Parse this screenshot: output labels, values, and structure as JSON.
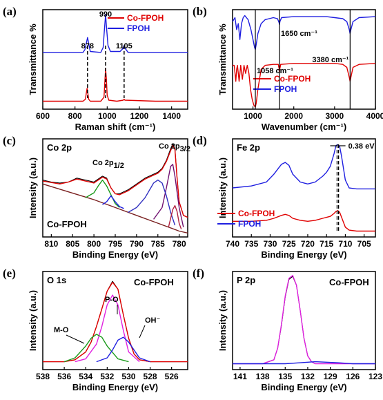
{
  "chart_data": [
    {
      "type": "line",
      "panel_label": "(a)",
      "xlabel": "Raman shift (cm⁻¹)",
      "ylabel": "Transmittance %",
      "xlim": [
        600,
        1500
      ],
      "x_ticks": [
        "600",
        "800",
        "1000",
        "1200",
        "1400"
      ],
      "legend": [
        {
          "name": "Co-FPOH",
          "color": "#e00000"
        },
        {
          "name": "FPOH",
          "color": "#1e1ee0"
        }
      ],
      "peak_labels": [
        "878",
        "990",
        "1105"
      ],
      "peaks": [
        878,
        990,
        1105
      ],
      "series": [
        {
          "name": "Co-FPOH",
          "color": "#e00000",
          "x": [
            600,
            850,
            865,
            870,
            875,
            880,
            885,
            895,
            960,
            980,
            985,
            990,
            995,
            1000,
            1010,
            1060,
            1100,
            1105,
            1110,
            1300,
            1500
          ],
          "y": [
            0.08,
            0.08,
            0.1,
            0.16,
            0.21,
            0.16,
            0.1,
            0.08,
            0.08,
            0.12,
            0.26,
            0.41,
            0.3,
            0.14,
            0.09,
            0.08,
            0.09,
            0.1,
            0.09,
            0.08,
            0.08
          ]
        },
        {
          "name": "FPOH",
          "color": "#1e1ee0",
          "x": [
            600,
            850,
            862,
            870,
            878,
            885,
            895,
            960,
            975,
            982,
            990,
            997,
            1005,
            1020,
            1080,
            1098,
            1105,
            1112,
            1130,
            1300,
            1500
          ],
          "y": [
            0.57,
            0.57,
            0.6,
            0.66,
            0.72,
            0.66,
            0.58,
            0.57,
            0.62,
            0.78,
            0.95,
            0.8,
            0.64,
            0.58,
            0.58,
            0.61,
            0.64,
            0.61,
            0.57,
            0.57,
            0.57
          ]
        }
      ]
    },
    {
      "type": "line",
      "panel_label": "(b)",
      "xlabel": "Wavenumber (cm⁻¹)",
      "ylabel": "Transmittance %",
      "xlim": [
        500,
        4000
      ],
      "x_ticks": [
        "1000",
        "2000",
        "3000",
        "4000"
      ],
      "legend": [
        {
          "name": "Co-FPOH",
          "color": "#e00000"
        },
        {
          "name": "FPOH",
          "color": "#1e1ee0"
        }
      ],
      "peak_labels": [
        "1058 cm⁻¹",
        "1650 cm⁻¹",
        "3380 cm⁻¹"
      ],
      "peaks": [
        1058,
        1650,
        3380
      ],
      "series": [
        {
          "name": "FPOH",
          "color": "#1e1ee0",
          "x": [
            500,
            560,
            600,
            640,
            680,
            720,
            760,
            800,
            880,
            950,
            1000,
            1040,
            1058,
            1080,
            1120,
            1200,
            1300,
            1500,
            1600,
            1640,
            1650,
            1660,
            1700,
            2000,
            2800,
            3000,
            3200,
            3300,
            3360,
            3380,
            3400,
            3450,
            3600,
            4000
          ],
          "y": [
            0.88,
            0.92,
            0.8,
            0.86,
            0.7,
            0.86,
            0.92,
            0.94,
            0.9,
            0.8,
            0.7,
            0.62,
            0.6,
            0.65,
            0.76,
            0.86,
            0.9,
            0.92,
            0.91,
            0.87,
            0.85,
            0.88,
            0.92,
            0.93,
            0.93,
            0.92,
            0.91,
            0.88,
            0.8,
            0.76,
            0.8,
            0.88,
            0.92,
            0.93
          ]
        },
        {
          "name": "Co-FPOH",
          "color": "#e00000",
          "x": [
            500,
            540,
            580,
            600,
            620,
            660,
            700,
            740,
            780,
            820,
            860,
            900,
            940,
            980,
            1020,
            1058,
            1080,
            1120,
            1200,
            1300,
            1500,
            1620,
            1640,
            1650,
            1660,
            1680,
            2000,
            3000,
            3200,
            3300,
            3360,
            3380,
            3400,
            3450,
            3600,
            4000
          ],
          "y": [
            0.44,
            0.44,
            0.28,
            0.4,
            0.44,
            0.28,
            0.44,
            0.3,
            0.44,
            0.36,
            0.44,
            0.36,
            0.2,
            0.1,
            0.04,
            0.02,
            0.06,
            0.2,
            0.4,
            0.44,
            0.45,
            0.45,
            0.41,
            0.37,
            0.41,
            0.45,
            0.46,
            0.46,
            0.45,
            0.42,
            0.32,
            0.28,
            0.32,
            0.42,
            0.45,
            0.46
          ]
        }
      ]
    },
    {
      "type": "line",
      "panel_label": "(c)",
      "element_label": "Co 2p",
      "xlabel": "Binding Energy (eV)",
      "ylabel": "Intensity (a.u.)",
      "xlim": [
        812,
        778
      ],
      "x_ticks": [
        "810",
        "805",
        "800",
        "795",
        "790",
        "785",
        "780"
      ],
      "sample_label": "Co-FPOH",
      "peak_label_1": "Co 2p",
      "peak_sub_1": "1/2",
      "peak_label_2": "Co 2p",
      "peak_sub_2": "3/2",
      "series": [
        {
          "name": "data",
          "color": "#000000",
          "x": [
            812,
            810,
            808,
            806,
            804,
            802,
            800,
            798,
            797,
            796,
            795,
            794,
            792,
            790,
            788,
            786,
            785,
            784,
            783,
            782,
            781.5,
            781,
            780.5,
            780,
            779,
            778
          ],
          "y": [
            0.58,
            0.56,
            0.55,
            0.56,
            0.6,
            0.58,
            0.56,
            0.62,
            0.6,
            0.5,
            0.44,
            0.44,
            0.48,
            0.54,
            0.6,
            0.64,
            0.66,
            0.7,
            0.78,
            0.9,
            0.95,
            0.9,
            0.6,
            0.36,
            0.22,
            0.2
          ]
        },
        {
          "name": "envelope",
          "color": "#e00000",
          "x": [
            812,
            808,
            806,
            804,
            802,
            800,
            798,
            797,
            796,
            795,
            794,
            792,
            790,
            788,
            786,
            785,
            784,
            783,
            782,
            781.5,
            781,
            780.5,
            780,
            779,
            778
          ],
          "y": [
            0.57,
            0.54,
            0.56,
            0.59,
            0.57,
            0.55,
            0.61,
            0.59,
            0.5,
            0.44,
            0.43,
            0.47,
            0.53,
            0.59,
            0.63,
            0.65,
            0.69,
            0.77,
            0.88,
            0.93,
            0.89,
            0.6,
            0.36,
            0.22,
            0.2
          ]
        },
        {
          "name": "background",
          "color": "#7a2020",
          "x": [
            812,
            800,
            795,
            790,
            785,
            780,
            778
          ],
          "y": [
            0.54,
            0.38,
            0.3,
            0.22,
            0.14,
            0.06,
            0.04
          ]
        },
        {
          "name": "Co 2p1/2 component",
          "color": "#1a9a1a",
          "x": [
            802,
            800,
            799,
            798,
            797,
            796,
            795,
            794
          ],
          "y": [
            0.4,
            0.45,
            0.52,
            0.58,
            0.52,
            0.43,
            0.34,
            0.3
          ]
        },
        {
          "name": "Co 2p1/2 satellite",
          "color": "#1e1ee0",
          "x": [
            798,
            797,
            796,
            795,
            794,
            793
          ],
          "y": [
            0.33,
            0.36,
            0.42,
            0.36,
            0.31,
            0.29
          ]
        },
        {
          "name": "Co 2p3/2 component",
          "color": "#701070",
          "x": [
            786,
            784,
            783,
            782,
            781.5,
            781,
            780,
            779
          ],
          "y": [
            0.18,
            0.3,
            0.5,
            0.72,
            0.74,
            0.62,
            0.3,
            0.1
          ]
        },
        {
          "name": "Co 2p3/2 satellite",
          "color": "#3030c0",
          "x": [
            792,
            790,
            788,
            786,
            785,
            784,
            783,
            782,
            781
          ],
          "y": [
            0.25,
            0.3,
            0.4,
            0.55,
            0.58,
            0.55,
            0.42,
            0.25,
            0.12
          ]
        },
        {
          "name": "Co 2p3/2 minor",
          "color": "#b02040",
          "x": [
            782.5,
            781.5,
            781,
            780.5,
            780,
            779.5
          ],
          "y": [
            0.1,
            0.28,
            0.32,
            0.26,
            0.14,
            0.08
          ]
        }
      ]
    },
    {
      "type": "line",
      "panel_label": "(d)",
      "element_label": "Fe 2p",
      "xlabel": "Binding Energy (eV)",
      "ylabel": "Intensity (a.u.)",
      "xlim": [
        740,
        702
      ],
      "x_ticks": [
        "740",
        "735",
        "730",
        "725",
        "720",
        "715",
        "710",
        "705"
      ],
      "annotation": "0.38 eV",
      "legend": [
        {
          "name": "Co-FPOH",
          "color": "#e00000"
        },
        {
          "name": "FPOH",
          "color": "#1e1ee0"
        }
      ],
      "series": [
        {
          "name": "FPOH",
          "color": "#1e1ee0",
          "x": [
            740,
            735,
            731,
            729,
            727,
            726,
            725,
            724,
            722,
            720,
            718,
            716,
            715,
            714,
            713,
            712.5,
            712,
            711.5,
            711,
            710,
            709,
            707,
            705,
            702
          ],
          "y": [
            0.5,
            0.52,
            0.56,
            0.64,
            0.74,
            0.76,
            0.73,
            0.64,
            0.56,
            0.54,
            0.56,
            0.62,
            0.66,
            0.72,
            0.85,
            0.93,
            0.94,
            0.92,
            0.82,
            0.58,
            0.5,
            0.49,
            0.49,
            0.49
          ]
        },
        {
          "name": "Co-FPOH",
          "color": "#e00000",
          "x": [
            740,
            735,
            731,
            729,
            727,
            726,
            725,
            724,
            722,
            720,
            718,
            716,
            715,
            714,
            713,
            712.5,
            712,
            711.5,
            711,
            710,
            709,
            707,
            705,
            702
          ],
          "y": [
            0.16,
            0.16,
            0.17,
            0.19,
            0.22,
            0.23,
            0.22,
            0.19,
            0.17,
            0.16,
            0.17,
            0.19,
            0.2,
            0.21,
            0.24,
            0.26,
            0.27,
            0.25,
            0.2,
            0.1,
            0.07,
            0.06,
            0.06,
            0.06
          ]
        }
      ]
    },
    {
      "type": "line",
      "panel_label": "(e)",
      "element_label": "O 1s",
      "xlabel": "Binding Energy (eV)",
      "ylabel": "Intensity (a.u.)",
      "xlim": [
        538,
        524.5
      ],
      "x_ticks": [
        "538",
        "536",
        "534",
        "532",
        "530",
        "528",
        "526"
      ],
      "sample_label": "Co-FPOH",
      "component_labels": [
        "M-O",
        "P-O",
        "OH⁻"
      ],
      "series": [
        {
          "name": "data",
          "color": "#000000",
          "x": [
            538,
            536,
            535,
            534,
            533.5,
            533,
            532.5,
            532,
            531.5,
            531,
            530.5,
            530,
            529.5,
            529,
            528,
            526,
            524.5
          ],
          "y": [
            0.08,
            0.08,
            0.1,
            0.18,
            0.28,
            0.44,
            0.62,
            0.8,
            0.9,
            0.82,
            0.56,
            0.32,
            0.16,
            0.1,
            0.08,
            0.08,
            0.08
          ]
        },
        {
          "name": "envelope",
          "color": "#e00000",
          "x": [
            538,
            536,
            535,
            534,
            533.5,
            533,
            532.5,
            532,
            531.5,
            531,
            530.5,
            530,
            529.5,
            529,
            528,
            526,
            524.5
          ],
          "y": [
            0.08,
            0.08,
            0.1,
            0.18,
            0.28,
            0.44,
            0.62,
            0.8,
            0.89,
            0.82,
            0.56,
            0.32,
            0.16,
            0.1,
            0.08,
            0.08,
            0.08
          ]
        },
        {
          "name": "P-O",
          "color": "#e020e0",
          "x": [
            535,
            534,
            533,
            532.5,
            532,
            531.5,
            531,
            530.5,
            530,
            529
          ],
          "y": [
            0.08,
            0.11,
            0.26,
            0.44,
            0.66,
            0.76,
            0.66,
            0.4,
            0.18,
            0.08
          ]
        },
        {
          "name": "M-O",
          "color": "#1a9a1a",
          "x": [
            536,
            535,
            534,
            533.5,
            533,
            532.5,
            532,
            531,
            530
          ],
          "y": [
            0.08,
            0.12,
            0.24,
            0.32,
            0.36,
            0.33,
            0.24,
            0.11,
            0.08
          ]
        },
        {
          "name": "OH⁻",
          "color": "#1e1ee0",
          "x": [
            533,
            532,
            531.5,
            531,
            530.5,
            530,
            529,
            528
          ],
          "y": [
            0.08,
            0.12,
            0.2,
            0.3,
            0.33,
            0.28,
            0.12,
            0.08
          ]
        }
      ]
    },
    {
      "type": "line",
      "panel_label": "(f)",
      "element_label": "P 2p",
      "xlabel": "Binding Energy (eV)",
      "ylabel": "Intensity (a.u.)",
      "xlim": [
        142,
        123
      ],
      "x_ticks": [
        "141",
        "138",
        "135",
        "132",
        "129",
        "126",
        "123"
      ],
      "sample_label": "Co-FPOH",
      "series": [
        {
          "name": "data",
          "color": "#000000",
          "x": [
            142,
            138,
            136.5,
            136,
            135.5,
            135,
            134.5,
            134,
            133.5,
            133,
            132.5,
            132,
            131.5,
            131,
            130,
            126,
            123
          ],
          "y": [
            0.06,
            0.06,
            0.1,
            0.22,
            0.45,
            0.74,
            0.92,
            0.95,
            0.86,
            0.6,
            0.32,
            0.14,
            0.08,
            0.06,
            0.06,
            0.06,
            0.06
          ]
        },
        {
          "name": "fit",
          "color": "#e020e0",
          "x": [
            142,
            138,
            136.5,
            136,
            135.5,
            135,
            134.5,
            134,
            133.5,
            133,
            132.5,
            132,
            131.5,
            131,
            130,
            126,
            123
          ],
          "y": [
            0.06,
            0.06,
            0.1,
            0.22,
            0.46,
            0.75,
            0.93,
            0.96,
            0.86,
            0.6,
            0.32,
            0.14,
            0.08,
            0.06,
            0.06,
            0.06,
            0.06
          ]
        },
        {
          "name": "background",
          "color": "#1e1ee0",
          "x": [
            142,
            138,
            135,
            133,
            131,
            128,
            126,
            123
          ],
          "y": [
            0.06,
            0.06,
            0.06,
            0.07,
            0.08,
            0.07,
            0.06,
            0.06
          ]
        }
      ]
    }
  ]
}
